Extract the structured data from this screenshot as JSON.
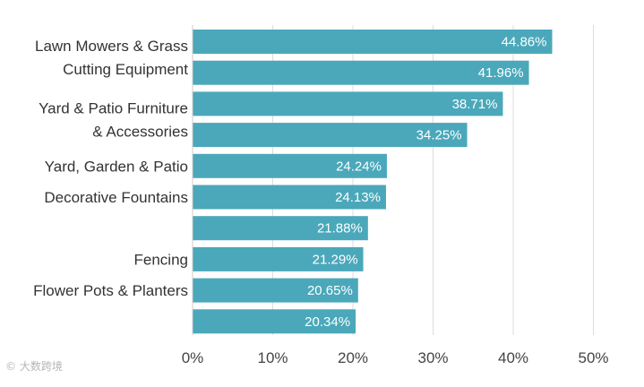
{
  "chart_data": {
    "type": "bar",
    "orientation": "horizontal",
    "categories": [
      [
        "Lawn Mowers & Grass",
        "Cutting Equipment"
      ],
      [],
      [
        "Yard & Patio Furniture",
        "& Accessories"
      ],
      [],
      [
        "Yard, Garden & Patio"
      ],
      [
        "Decorative Fountains"
      ],
      [],
      [
        "Fencing"
      ],
      [
        "Flower Pots & Planters"
      ],
      []
    ],
    "values": [
      44.86,
      41.96,
      38.71,
      34.25,
      24.24,
      24.13,
      21.88,
      21.29,
      20.65,
      20.34
    ],
    "data_labels": [
      "44.86%",
      "41.96%",
      "38.71%",
      "34.25%",
      "24.24%",
      "24.13%",
      "21.88%",
      "21.29%",
      "20.65%",
      "20.34%"
    ],
    "xticks": [
      "0%",
      "10%",
      "20%",
      "30%",
      "40%",
      "50%"
    ],
    "xlim": [
      0,
      50
    ],
    "grid": "vertical",
    "colors": {
      "bar": "#4AA8BA",
      "grid": "#dddddd",
      "text": "#333333"
    }
  },
  "watermark": "© 大数跨境"
}
